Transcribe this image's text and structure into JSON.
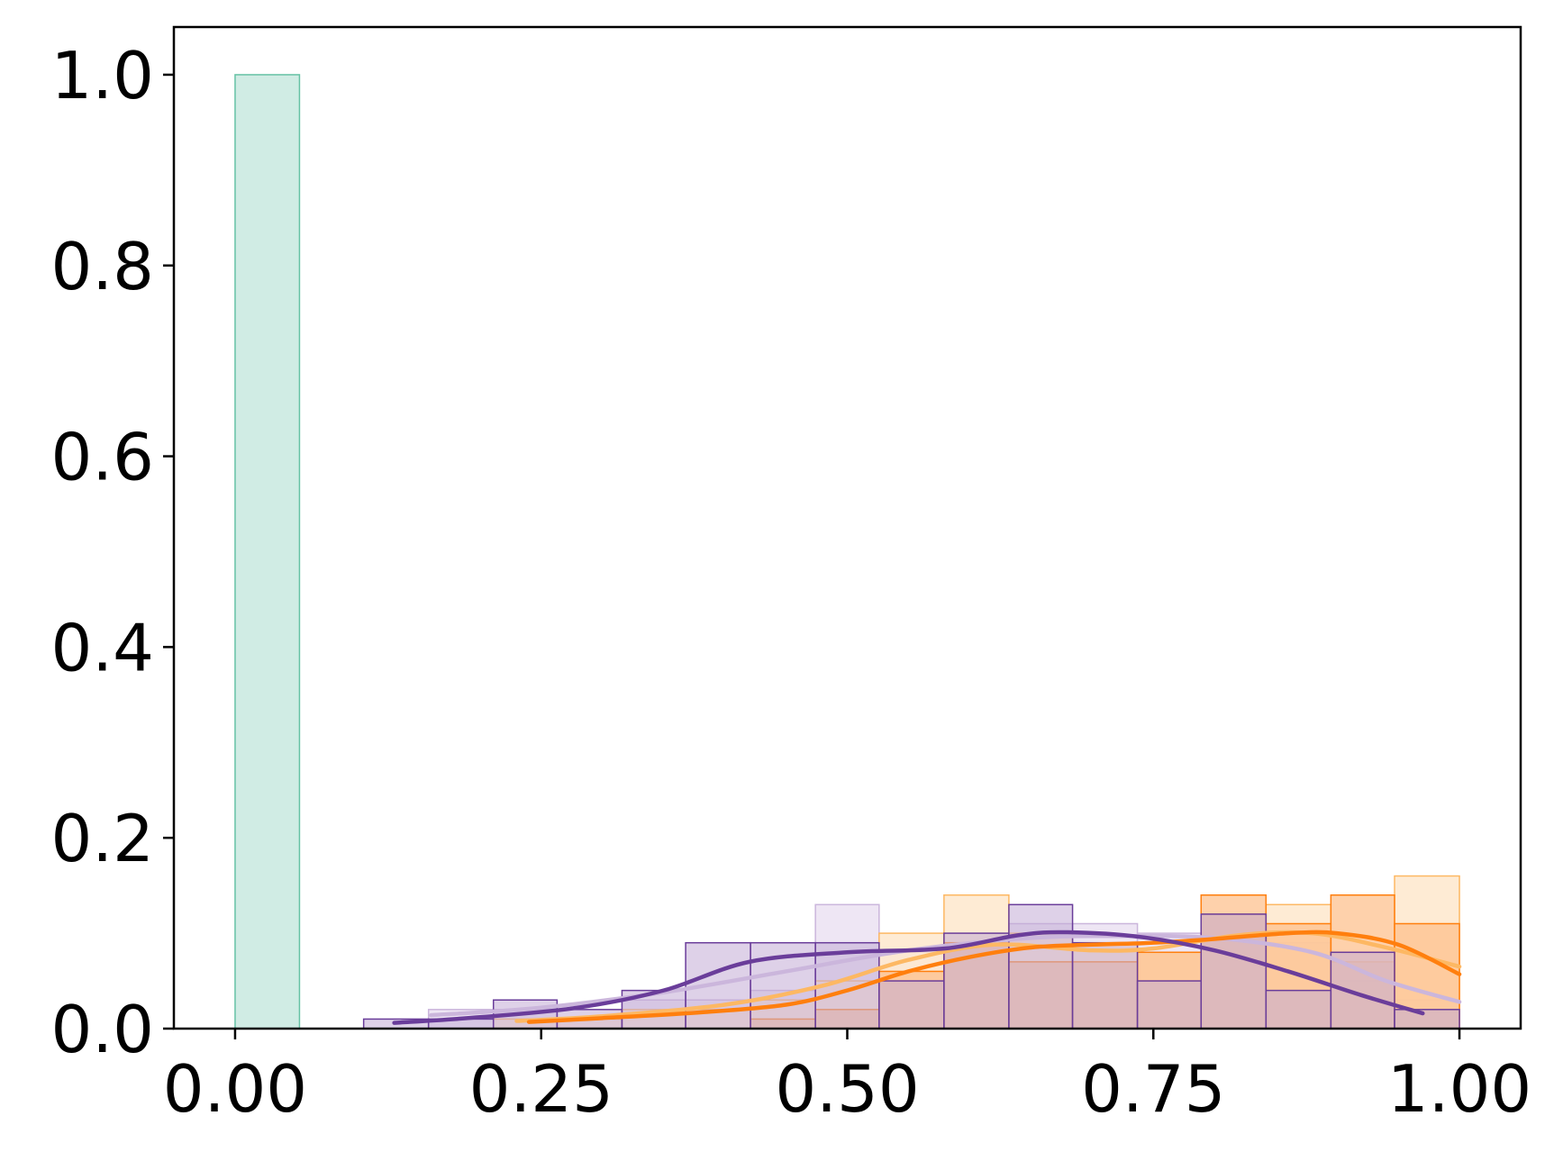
{
  "chart_data": {
    "type": "histogram",
    "title": "",
    "xlabel": "",
    "ylabel": "",
    "xlim": [
      -0.05,
      1.05
    ],
    "ylim": [
      0,
      1.05
    ],
    "grid": false,
    "legend": "none",
    "bin_width": 0.0526,
    "x_ticks": [
      "0.00",
      "0.25",
      "0.50",
      "0.75",
      "1.00"
    ],
    "x_tick_values": [
      0,
      0.25,
      0.5,
      0.75,
      1.0
    ],
    "y_ticks": [
      "0.0",
      "0.2",
      "0.4",
      "0.6",
      "0.8",
      "1.0"
    ],
    "y_tick_values": [
      0,
      0.2,
      0.4,
      0.6,
      0.8,
      1.0
    ],
    "series": [
      {
        "color": "#66c2a5",
        "fill": "#d0ece4",
        "bins": [
          {
            "x0": 0.0,
            "x1": 0.0526,
            "value": 1.0
          }
        ]
      },
      {
        "color": "#cbb6dc",
        "fill": "#ebe2f2",
        "fill_opacity": 0.85,
        "bins": [
          {
            "x0": 0.158,
            "x1": 0.211,
            "value": 0.02
          },
          {
            "x0": 0.211,
            "x1": 0.263,
            "value": 0.02
          },
          {
            "x0": 0.263,
            "x1": 0.316,
            "value": 0.01
          },
          {
            "x0": 0.316,
            "x1": 0.368,
            "value": 0.03
          },
          {
            "x0": 0.368,
            "x1": 0.421,
            "value": 0.03
          },
          {
            "x0": 0.421,
            "x1": 0.474,
            "value": 0.04
          },
          {
            "x0": 0.474,
            "x1": 0.526,
            "value": 0.13
          },
          {
            "x0": 0.526,
            "x1": 0.579,
            "value": 0.08
          },
          {
            "x0": 0.579,
            "x1": 0.632,
            "value": 0.1
          },
          {
            "x0": 0.632,
            "x1": 0.684,
            "value": 0.11
          },
          {
            "x0": 0.684,
            "x1": 0.737,
            "value": 0.11
          },
          {
            "x0": 0.737,
            "x1": 0.789,
            "value": 0.1
          },
          {
            "x0": 0.789,
            "x1": 0.842,
            "value": 0.12
          },
          {
            "x0": 0.842,
            "x1": 0.895,
            "value": 0.09
          },
          {
            "x0": 0.895,
            "x1": 0.947,
            "value": 0.05
          },
          {
            "x0": 0.947,
            "x1": 1.0,
            "value": 0.03
          }
        ],
        "kde": [
          [
            0.16,
            0.014
          ],
          [
            0.25,
            0.022
          ],
          [
            0.35,
            0.038
          ],
          [
            0.45,
            0.06
          ],
          [
            0.55,
            0.082
          ],
          [
            0.65,
            0.095
          ],
          [
            0.72,
            0.097
          ],
          [
            0.8,
            0.095
          ],
          [
            0.88,
            0.08
          ],
          [
            0.94,
            0.05
          ],
          [
            1.0,
            0.028
          ]
        ]
      },
      {
        "color": "#fdb863",
        "fill": "#fee7cc",
        "fill_opacity": 0.85,
        "bins": [
          {
            "x0": 0.211,
            "x1": 0.263,
            "value": 0.01
          },
          {
            "x0": 0.263,
            "x1": 0.316,
            "value": 0.01
          },
          {
            "x0": 0.316,
            "x1": 0.368,
            "value": 0.02
          },
          {
            "x0": 0.368,
            "x1": 0.421,
            "value": 0.02
          },
          {
            "x0": 0.421,
            "x1": 0.474,
            "value": 0.03
          },
          {
            "x0": 0.474,
            "x1": 0.526,
            "value": 0.05
          },
          {
            "x0": 0.526,
            "x1": 0.579,
            "value": 0.1
          },
          {
            "x0": 0.579,
            "x1": 0.632,
            "value": 0.14
          },
          {
            "x0": 0.632,
            "x1": 0.684,
            "value": 0.1
          },
          {
            "x0": 0.684,
            "x1": 0.737,
            "value": 0.09
          },
          {
            "x0": 0.737,
            "x1": 0.789,
            "value": 0.08
          },
          {
            "x0": 0.789,
            "x1": 0.842,
            "value": 0.12
          },
          {
            "x0": 0.842,
            "x1": 0.895,
            "value": 0.13
          },
          {
            "x0": 0.895,
            "x1": 0.947,
            "value": 0.07
          },
          {
            "x0": 0.947,
            "x1": 1.0,
            "value": 0.16
          }
        ],
        "kde": [
          [
            0.23,
            0.008
          ],
          [
            0.3,
            0.013
          ],
          [
            0.4,
            0.025
          ],
          [
            0.48,
            0.045
          ],
          [
            0.55,
            0.072
          ],
          [
            0.62,
            0.088
          ],
          [
            0.7,
            0.082
          ],
          [
            0.75,
            0.084
          ],
          [
            0.82,
            0.098
          ],
          [
            0.88,
            0.1
          ],
          [
            0.94,
            0.085
          ],
          [
            1.0,
            0.065
          ]
        ]
      },
      {
        "color": "#ff7f0e",
        "fill": "#fdbe87",
        "fill_opacity": 0.7,
        "bins": [
          {
            "x0": 0.421,
            "x1": 0.474,
            "value": 0.01
          },
          {
            "x0": 0.474,
            "x1": 0.526,
            "value": 0.02
          },
          {
            "x0": 0.526,
            "x1": 0.579,
            "value": 0.06
          },
          {
            "x0": 0.579,
            "x1": 0.632,
            "value": 0.09
          },
          {
            "x0": 0.632,
            "x1": 0.684,
            "value": 0.07
          },
          {
            "x0": 0.684,
            "x1": 0.737,
            "value": 0.07
          },
          {
            "x0": 0.737,
            "x1": 0.789,
            "value": 0.08
          },
          {
            "x0": 0.789,
            "x1": 0.842,
            "value": 0.14
          },
          {
            "x0": 0.842,
            "x1": 0.895,
            "value": 0.11
          },
          {
            "x0": 0.895,
            "x1": 0.947,
            "value": 0.14
          },
          {
            "x0": 0.947,
            "x1": 1.0,
            "value": 0.11
          }
        ],
        "kde": [
          [
            0.24,
            0.007
          ],
          [
            0.3,
            0.011
          ],
          [
            0.38,
            0.017
          ],
          [
            0.45,
            0.025
          ],
          [
            0.5,
            0.04
          ],
          [
            0.55,
            0.06
          ],
          [
            0.6,
            0.075
          ],
          [
            0.65,
            0.085
          ],
          [
            0.7,
            0.088
          ],
          [
            0.75,
            0.09
          ],
          [
            0.8,
            0.094
          ],
          [
            0.86,
            0.1
          ],
          [
            0.9,
            0.1
          ],
          [
            0.95,
            0.088
          ],
          [
            1.0,
            0.057
          ]
        ]
      },
      {
        "color": "#6a3d9a",
        "fill": "#c2abd6",
        "fill_opacity": 0.55,
        "bins": [
          {
            "x0": 0.105,
            "x1": 0.158,
            "value": 0.01
          },
          {
            "x0": 0.158,
            "x1": 0.211,
            "value": 0.01
          },
          {
            "x0": 0.211,
            "x1": 0.263,
            "value": 0.03
          },
          {
            "x0": 0.263,
            "x1": 0.316,
            "value": 0.02
          },
          {
            "x0": 0.316,
            "x1": 0.368,
            "value": 0.04
          },
          {
            "x0": 0.368,
            "x1": 0.421,
            "value": 0.09
          },
          {
            "x0": 0.421,
            "x1": 0.474,
            "value": 0.09
          },
          {
            "x0": 0.474,
            "x1": 0.526,
            "value": 0.09
          },
          {
            "x0": 0.526,
            "x1": 0.579,
            "value": 0.05
          },
          {
            "x0": 0.579,
            "x1": 0.632,
            "value": 0.1
          },
          {
            "x0": 0.632,
            "x1": 0.684,
            "value": 0.13
          },
          {
            "x0": 0.684,
            "x1": 0.737,
            "value": 0.09
          },
          {
            "x0": 0.737,
            "x1": 0.789,
            "value": 0.05
          },
          {
            "x0": 0.789,
            "x1": 0.842,
            "value": 0.12
          },
          {
            "x0": 0.842,
            "x1": 0.895,
            "value": 0.04
          },
          {
            "x0": 0.895,
            "x1": 0.947,
            "value": 0.08
          },
          {
            "x0": 0.947,
            "x1": 1.0,
            "value": 0.02
          }
        ],
        "kde": [
          [
            0.13,
            0.006
          ],
          [
            0.2,
            0.012
          ],
          [
            0.28,
            0.022
          ],
          [
            0.35,
            0.04
          ],
          [
            0.42,
            0.07
          ],
          [
            0.5,
            0.08
          ],
          [
            0.58,
            0.084
          ],
          [
            0.64,
            0.098
          ],
          [
            0.68,
            0.101
          ],
          [
            0.74,
            0.096
          ],
          [
            0.8,
            0.082
          ],
          [
            0.86,
            0.06
          ],
          [
            0.92,
            0.035
          ],
          [
            0.97,
            0.016
          ]
        ]
      }
    ]
  }
}
